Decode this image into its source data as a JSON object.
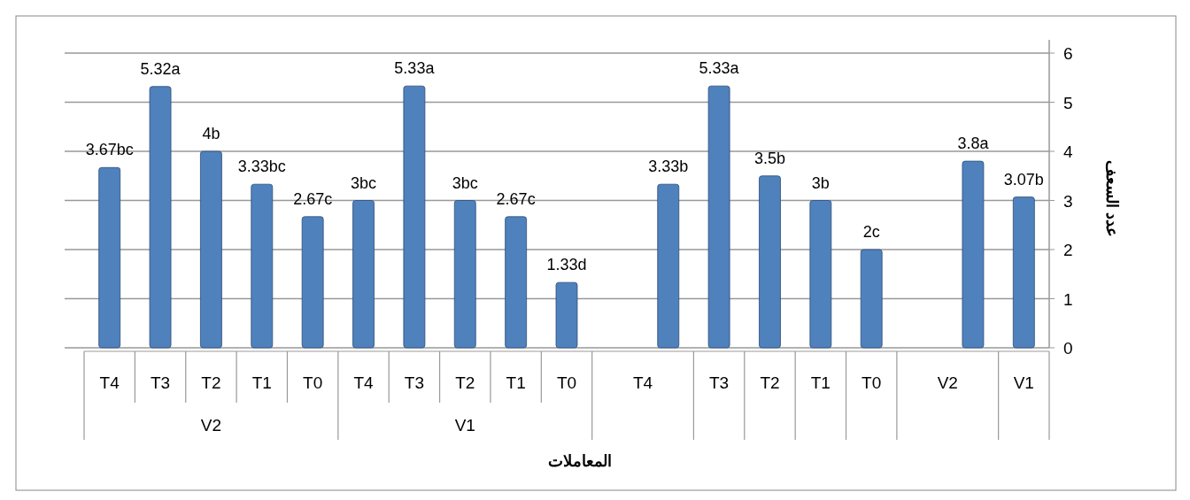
{
  "chart_data": {
    "type": "bar",
    "xlabel": "المعاملات",
    "ylabel": "عدد السعف",
    "categories": [
      "T4",
      "T3",
      "T2",
      "T1",
      "T0",
      "T4",
      "T3",
      "T2",
      "T1",
      "T0",
      null,
      "T4",
      "T3",
      "T2",
      "T1",
      "T0",
      null,
      "V2",
      "V1"
    ],
    "values": [
      3.67,
      5.32,
      4,
      3.33,
      2.67,
      3,
      5.33,
      3,
      2.67,
      1.33,
      null,
      3.33,
      5.33,
      3.5,
      3,
      2,
      null,
      3.8,
      3.07
    ],
    "value_labels": [
      "3.67bc",
      "5.32a",
      "4b",
      "3.33bc",
      "2.67c",
      "3bc",
      "5.33a",
      "3bc",
      "2.67c",
      "1.33d",
      null,
      "3.33b",
      "5.33a",
      "3.5b",
      "3b",
      "2c",
      null,
      "3.8a",
      "3.07b"
    ],
    "color": "#4f81bd",
    "annotations": [
      "V2",
      "V1"
    ],
    "ylim": [
      0,
      6
    ],
    "yticks": [
      0,
      1,
      2,
      3,
      4,
      5,
      6
    ],
    "grid": "y"
  }
}
